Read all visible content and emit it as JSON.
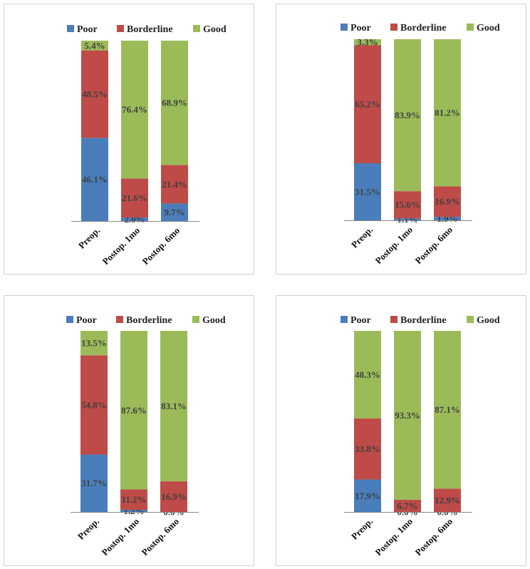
{
  "colors": {
    "Poor": "#4a7ebb",
    "Borderline": "#be4b48",
    "Good": "#9bbb59"
  },
  "chart_data": [
    {
      "type": "bar",
      "stacked": true,
      "categories": [
        "Preop.",
        "Postop. 1mo",
        "Postop. 6mo"
      ],
      "series": [
        {
          "name": "Poor",
          "values": [
            46.1,
            2.0,
            9.7
          ],
          "labels": [
            "46.1%",
            "2.0%",
            "9.7%"
          ]
        },
        {
          "name": "Borderline",
          "values": [
            48.5,
            21.6,
            21.4
          ],
          "labels": [
            "48.5%",
            "21.6%",
            "21.4%"
          ]
        },
        {
          "name": "Good",
          "values": [
            5.4,
            76.4,
            68.9
          ],
          "labels": [
            "5.4%",
            "76.4%",
            "68.9%"
          ]
        }
      ],
      "ylim": [
        0,
        100
      ],
      "legend": "top"
    },
    {
      "type": "bar",
      "stacked": true,
      "categories": [
        "Preop.",
        "Postop. 1mo",
        "Postop. 6mo"
      ],
      "series": [
        {
          "name": "Poor",
          "values": [
            31.5,
            1.1,
            1.9
          ],
          "labels": [
            "31.5%",
            "1.1%",
            "1.9%"
          ]
        },
        {
          "name": "Borderline",
          "values": [
            65.2,
            15.0,
            16.9
          ],
          "labels": [
            "65.2%",
            "15.0%",
            "16.9%"
          ]
        },
        {
          "name": "Good",
          "values": [
            3.3,
            83.9,
            81.2
          ],
          "labels": [
            "3.3%",
            "83.9%",
            "81.2%"
          ]
        }
      ],
      "ylim": [
        0,
        100
      ],
      "legend": "top"
    },
    {
      "type": "bar",
      "stacked": true,
      "categories": [
        "Preop.",
        "Postop. 1mo",
        "Postop. 6mo"
      ],
      "series": [
        {
          "name": "Poor",
          "values": [
            31.7,
            1.2,
            0.0
          ],
          "labels": [
            "31.7%",
            "1.2%",
            "0.0%"
          ]
        },
        {
          "name": "Borderline",
          "values": [
            54.8,
            11.2,
            16.9
          ],
          "labels": [
            "54.8%",
            "11.2%",
            "16.9%"
          ]
        },
        {
          "name": "Good",
          "values": [
            13.5,
            87.6,
            83.1
          ],
          "labels": [
            "13.5%",
            "87.6%",
            "83.1%"
          ]
        }
      ],
      "ylim": [
        0,
        100
      ],
      "legend": "top"
    },
    {
      "type": "bar",
      "stacked": true,
      "categories": [
        "Preop.",
        "Postop. 1mo",
        "Postop. 6mo"
      ],
      "series": [
        {
          "name": "Poor",
          "values": [
            17.9,
            0.0,
            0.0
          ],
          "labels": [
            "17.9%",
            "0.0%",
            "0.0%"
          ]
        },
        {
          "name": "Borderline",
          "values": [
            33.8,
            6.7,
            12.9
          ],
          "labels": [
            "33.8%",
            "6.7%",
            "12.9%"
          ]
        },
        {
          "name": "Good",
          "values": [
            48.3,
            93.3,
            87.1
          ],
          "labels": [
            "48.3%",
            "93.3%",
            "87.1%"
          ]
        }
      ],
      "ylim": [
        0,
        100
      ],
      "legend": "top"
    }
  ]
}
